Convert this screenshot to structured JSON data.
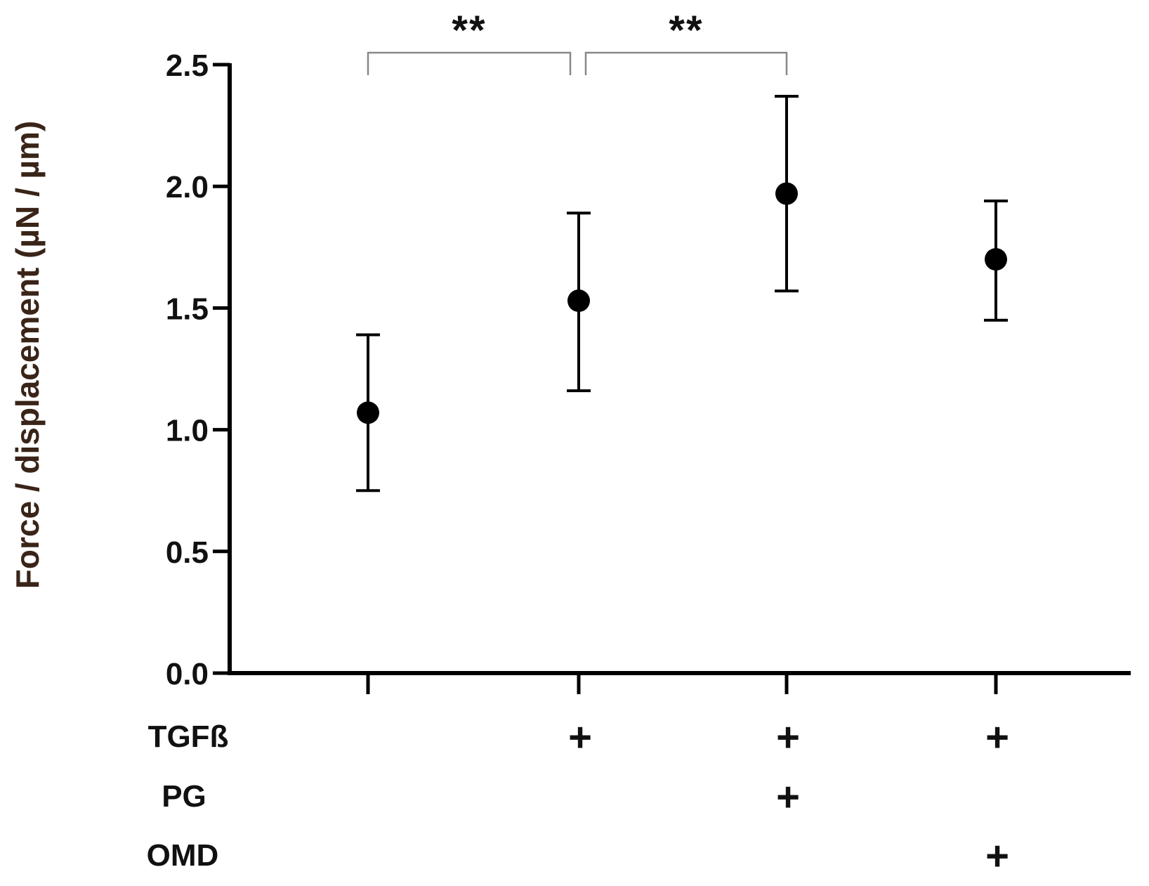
{
  "chart_data": {
    "type": "scatter",
    "title": "",
    "ylabel": "Force / displacement (µN / µm)",
    "xlabel": "",
    "ylim": [
      0,
      2.5
    ],
    "yticks": [
      0.0,
      0.5,
      1.0,
      1.5,
      2.0,
      2.5
    ],
    "ytick_labels": [
      "0.0",
      "0.5",
      "1.0",
      "1.5",
      "2.0",
      "2.5"
    ],
    "grid": false,
    "groups": [
      {
        "mean": 1.07,
        "error_low": 0.75,
        "error_high": 1.39
      },
      {
        "mean": 1.53,
        "error_low": 1.16,
        "error_high": 1.89
      },
      {
        "mean": 1.97,
        "error_low": 1.57,
        "error_high": 2.37
      },
      {
        "mean": 1.7,
        "error_low": 1.45,
        "error_high": 1.94
      }
    ],
    "treatment_table": {
      "rows": [
        {
          "label": "TGFß",
          "marks": [
            "",
            "+",
            "+",
            "+"
          ]
        },
        {
          "label": "PG",
          "marks": [
            "",
            "",
            "+",
            ""
          ]
        },
        {
          "label": "OMD",
          "marks": [
            "",
            "",
            "",
            "+"
          ]
        }
      ]
    },
    "significance": [
      {
        "from_group": 0,
        "to_group": 1,
        "label": "**"
      },
      {
        "from_group": 1,
        "to_group": 2,
        "label": "**"
      }
    ],
    "colors": {
      "marker": "#000000",
      "axis": "#000000",
      "ylabel": "#3a2418",
      "bracket": "#888888"
    }
  }
}
